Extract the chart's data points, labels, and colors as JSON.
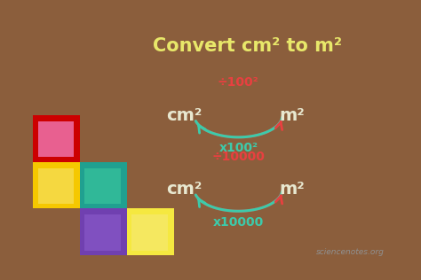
{
  "title": "Convert cm² to m²",
  "title_color": "#e8e86a",
  "board_color": "#252e25",
  "frame_color": "#8B5E3C",
  "arrow_red": "#e84040",
  "arrow_teal": "#3dcaaa",
  "text_color": "#e8e8d0",
  "watermark": "sciencenotes.org",
  "watermark_color": "#909090",
  "divide_label1": "÷100²",
  "multiply_label1": "x100²",
  "divide_label2": "÷10000",
  "multiply_label2": "x10000",
  "cm2_label": "cm²",
  "m2_label": "m²",
  "figsize": [
    4.74,
    3.16
  ],
  "dpi": 100
}
